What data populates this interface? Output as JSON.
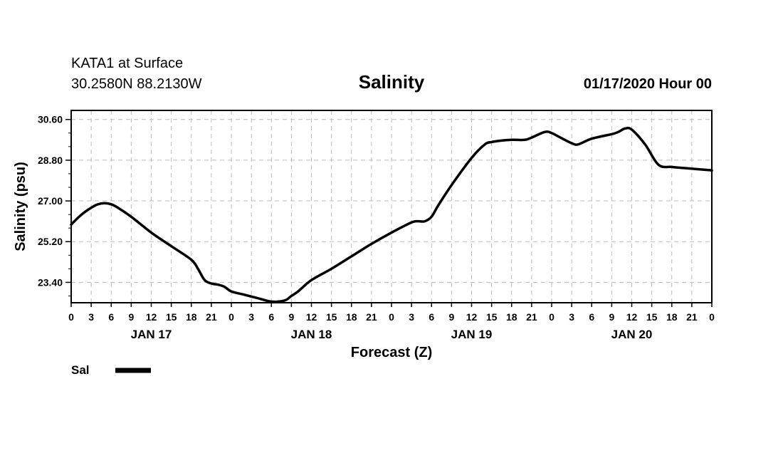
{
  "header": {
    "station": "KATA1 at Surface",
    "location": "30.2580N 88.2130W",
    "title": "Salinity",
    "timestamp": "01/17/2020 Hour 00"
  },
  "chart_data": {
    "type": "line",
    "title": "Salinity",
    "xlabel": "Forecast (Z)",
    "ylabel": "Salinity (psu)",
    "x_unit": "forecast hour",
    "xlim": [
      0,
      96
    ],
    "ylim": [
      22.5,
      31.0
    ],
    "y_ticks": [
      23.4,
      25.2,
      27.0,
      28.8,
      30.6
    ],
    "y_tick_labels": [
      "23.40",
      "25.20",
      "27.00",
      "28.80",
      "30.60"
    ],
    "x_ticks": [
      0,
      3,
      6,
      9,
      12,
      15,
      18,
      21,
      24,
      27,
      30,
      33,
      36,
      39,
      42,
      45,
      48,
      51,
      54,
      57,
      60,
      63,
      66,
      69,
      72,
      75,
      78,
      81,
      84,
      87,
      90,
      93,
      96
    ],
    "x_tick_labels": [
      "0",
      "3",
      "6",
      "9",
      "12",
      "15",
      "18",
      "21",
      "0",
      "3",
      "6",
      "9",
      "12",
      "15",
      "18",
      "21",
      "0",
      "3",
      "6",
      "9",
      "12",
      "15",
      "18",
      "21",
      "0",
      "3",
      "6",
      "9",
      "12",
      "15",
      "18",
      "21",
      "0"
    ],
    "day_labels": [
      {
        "x": 12,
        "label": "JAN 17"
      },
      {
        "x": 36,
        "label": "JAN 18"
      },
      {
        "x": 60,
        "label": "JAN 19"
      },
      {
        "x": 84,
        "label": "JAN 20"
      }
    ],
    "grid": true,
    "legend_position": "bottom-left",
    "series": [
      {
        "name": "Sal",
        "color": "#000000",
        "x": [
          0,
          1,
          2,
          3,
          4,
          5,
          6,
          7,
          9,
          12,
          15,
          18,
          19,
          20,
          21,
          22,
          23,
          24,
          26,
          28,
          30,
          32,
          33,
          34,
          36,
          39,
          42,
          45,
          48,
          51,
          52,
          53,
          54,
          55,
          57,
          60,
          62,
          63,
          64,
          66,
          68,
          69,
          71,
          72,
          73,
          75,
          76,
          78,
          81,
          82,
          83,
          84,
          86,
          88,
          90,
          92,
          96
        ],
        "values": [
          25.95,
          26.25,
          26.5,
          26.7,
          26.85,
          26.9,
          26.85,
          26.7,
          26.3,
          25.6,
          25.0,
          24.4,
          24.0,
          23.5,
          23.35,
          23.3,
          23.2,
          23.0,
          22.85,
          22.7,
          22.55,
          22.6,
          22.8,
          23.0,
          23.5,
          24.0,
          24.55,
          25.1,
          25.6,
          26.05,
          26.1,
          26.1,
          26.3,
          26.8,
          27.7,
          28.9,
          29.5,
          29.6,
          29.65,
          29.7,
          29.7,
          29.8,
          30.05,
          30.0,
          29.85,
          29.55,
          29.5,
          29.75,
          29.95,
          30.05,
          30.2,
          30.15,
          29.5,
          28.6,
          28.5,
          28.45,
          28.35
        ]
      }
    ]
  },
  "legend": {
    "entries": [
      {
        "label": "Sal",
        "color": "#000000"
      }
    ]
  }
}
